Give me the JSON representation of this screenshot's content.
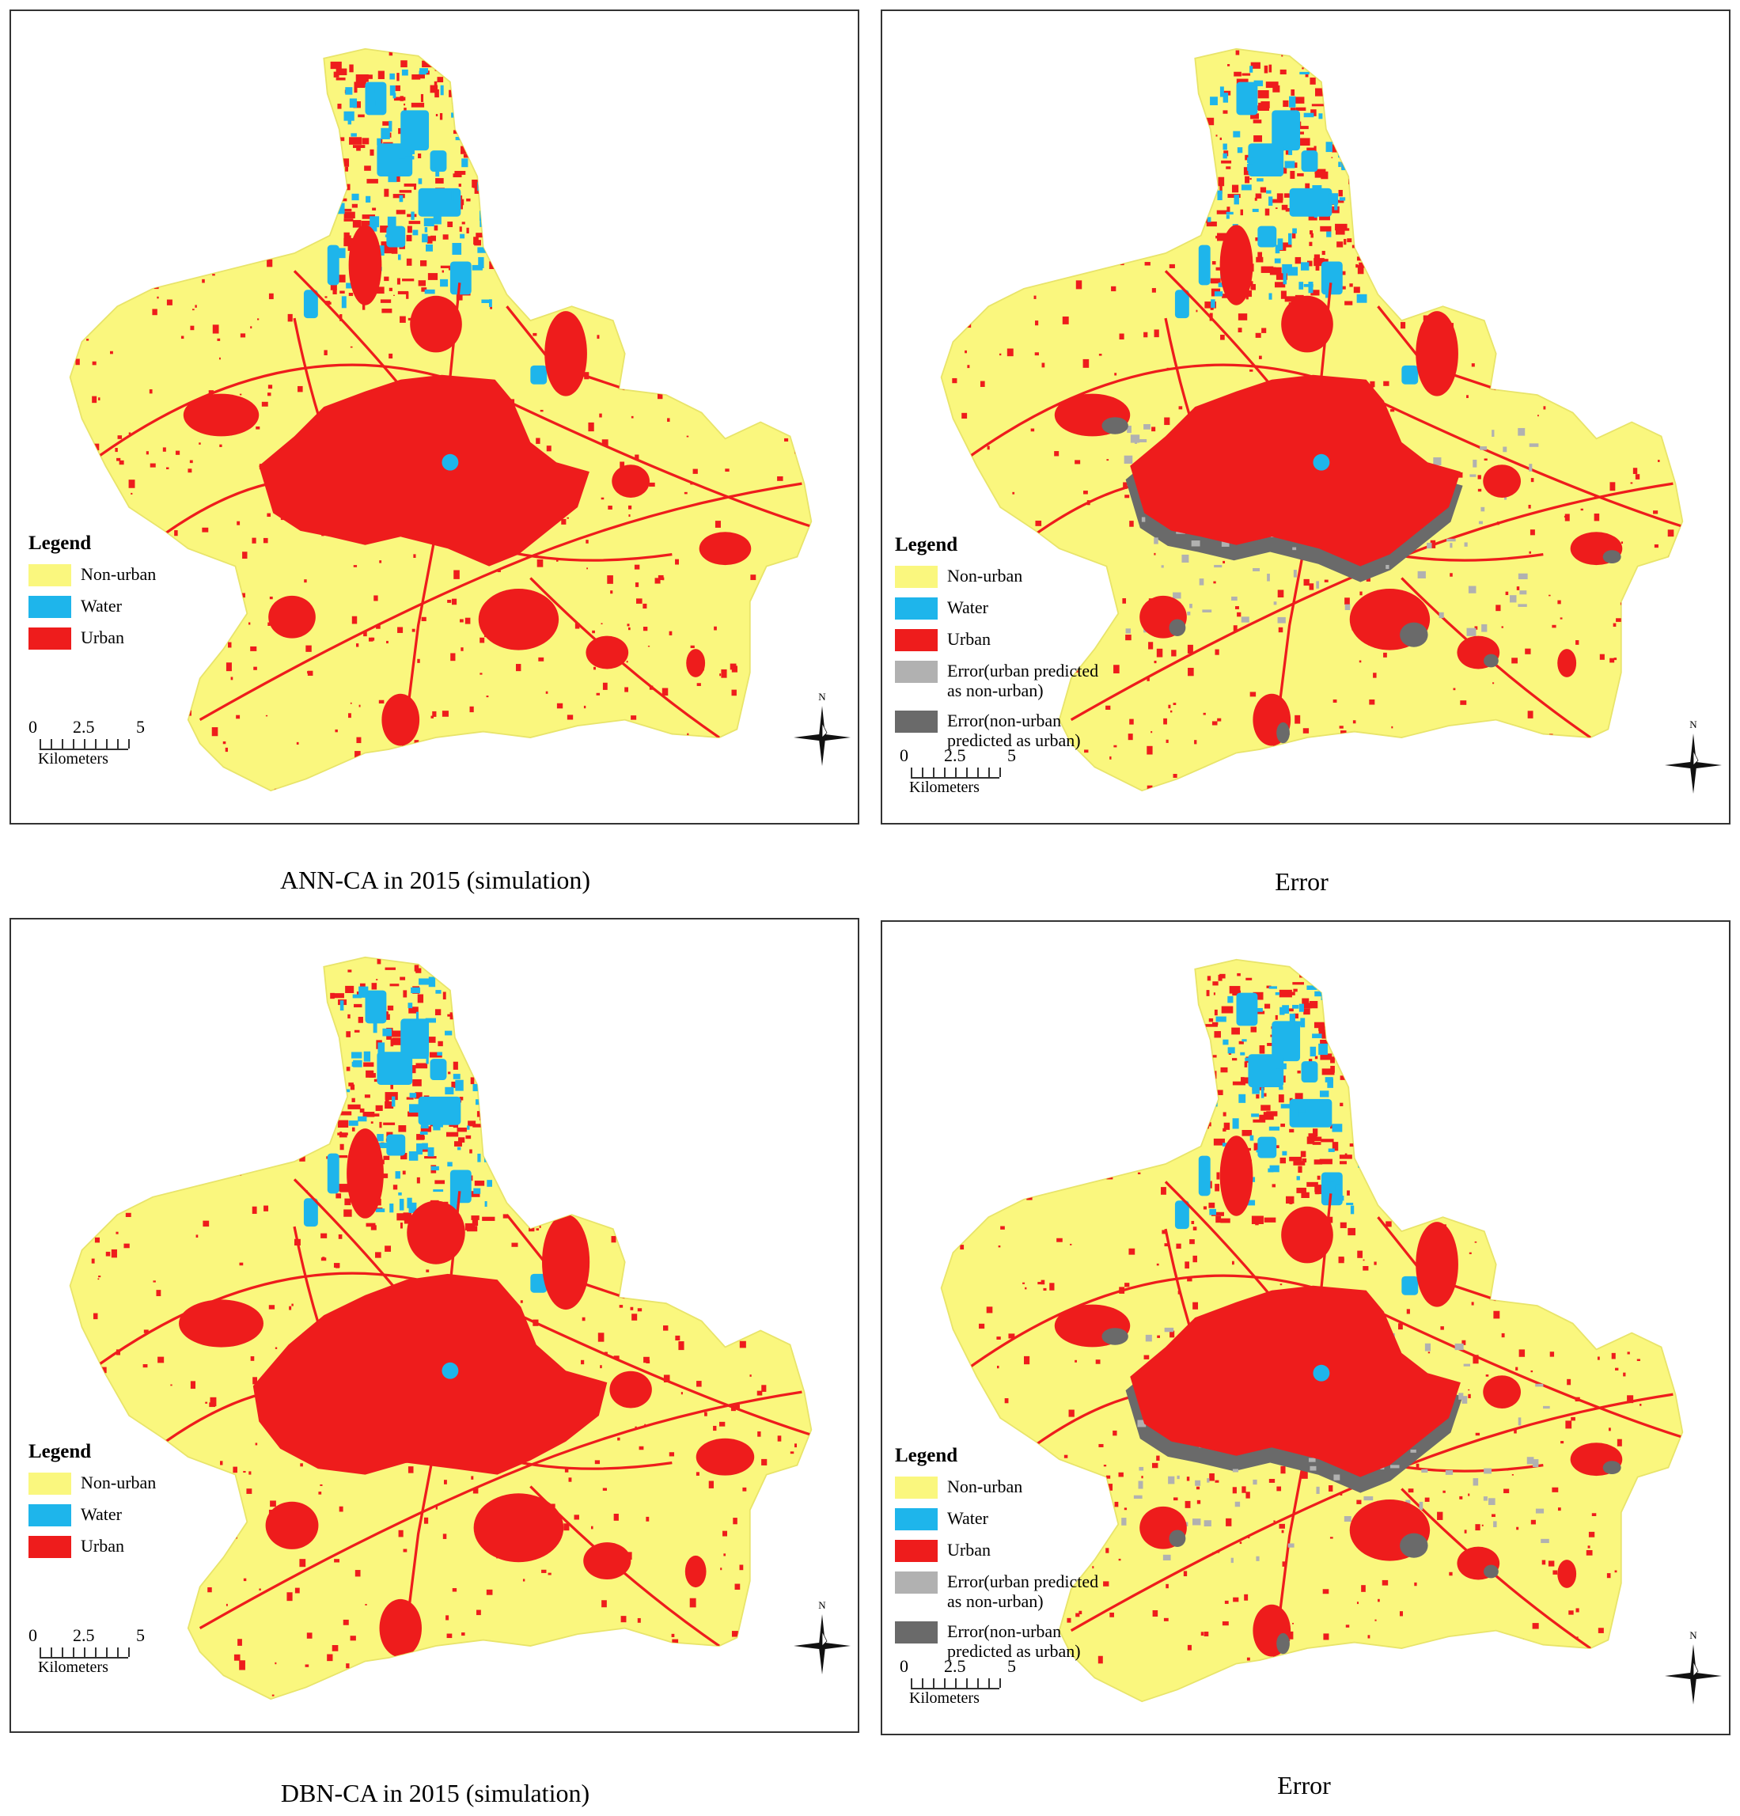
{
  "colors": {
    "non_urban": "#FAF77E",
    "water": "#1EB5EB",
    "urban": "#EE1C1C",
    "error_urban_as_nonurban": "#B1B1B1",
    "error_nonurban_as_urban": "#6A6A6A"
  },
  "panels": [
    {
      "id": "ann-ca-simulation",
      "caption": "ANN-CA in 2015 (simulation)",
      "legend": {
        "title": "Legend",
        "items": [
          {
            "label": "Non-urban",
            "color": "#FAF77E"
          },
          {
            "label": "Water",
            "color": "#1EB5EB"
          },
          {
            "label": "Urban",
            "color": "#EE1C1C"
          }
        ]
      },
      "scale": {
        "ticks": [
          "0",
          "2.5",
          "5"
        ],
        "unit": "Kilometers"
      },
      "north_label": "N"
    },
    {
      "id": "ann-ca-error",
      "caption": "Error",
      "legend": {
        "title": "Legend",
        "items": [
          {
            "label": "Non-urban",
            "color": "#FAF77E"
          },
          {
            "label": "Water",
            "color": "#1EB5EB"
          },
          {
            "label": "Urban",
            "color": "#EE1C1C"
          },
          {
            "label": "Error(urban predicted\nas non-urban)",
            "color": "#B1B1B1"
          },
          {
            "label": "Error(non-urban\npredicted as urban)",
            "color": "#6A6A6A"
          }
        ]
      },
      "scale": {
        "ticks": [
          "0",
          "2.5",
          "5"
        ],
        "unit": "Kilometers"
      },
      "north_label": "N"
    },
    {
      "id": "dbn-ca-simulation",
      "caption": "DBN-CA in 2015 (simulation)",
      "legend": {
        "title": "Legend",
        "items": [
          {
            "label": "Non-urban",
            "color": "#FAF77E"
          },
          {
            "label": "Water",
            "color": "#1EB5EB"
          },
          {
            "label": "Urban",
            "color": "#EE1C1C"
          }
        ]
      },
      "scale": {
        "ticks": [
          "0",
          "2.5",
          "5"
        ],
        "unit": "Kilometers"
      },
      "north_label": "N"
    },
    {
      "id": "dbn-ca-error",
      "caption": "Error",
      "legend": {
        "title": "Legend",
        "items": [
          {
            "label": "Non-urban",
            "color": "#FAF77E"
          },
          {
            "label": "Water",
            "color": "#1EB5EB"
          },
          {
            "label": "Urban",
            "color": "#EE1C1C"
          },
          {
            "label": "Error(urban predicted\nas non-urban)",
            "color": "#B1B1B1"
          },
          {
            "label": "Error(non-urban\npredicted as urban)",
            "color": "#6A6A6A"
          }
        ]
      },
      "scale": {
        "ticks": [
          "0",
          "2.5",
          "5"
        ],
        "unit": "Kilometers"
      },
      "north_label": "N"
    }
  ]
}
